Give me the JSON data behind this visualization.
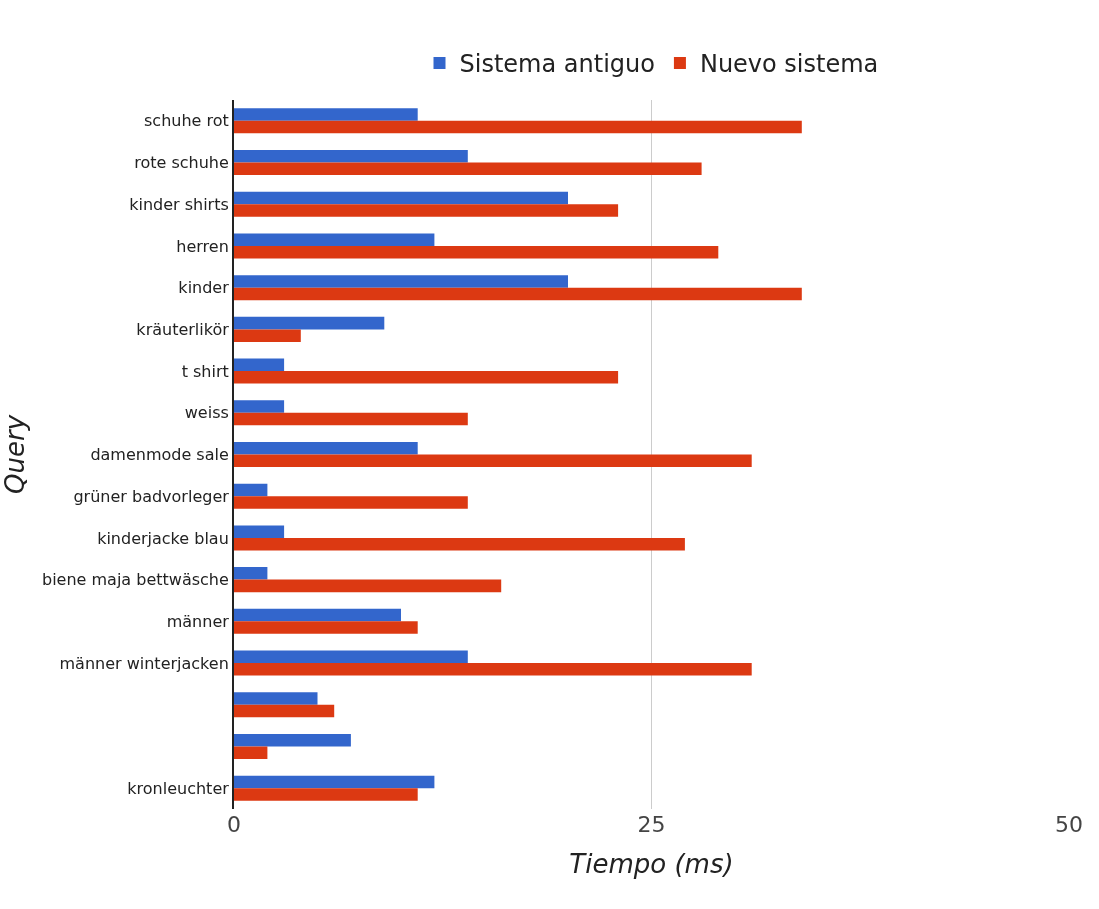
{
  "chart_data": {
    "type": "bar",
    "orientation": "horizontal",
    "xlabel": "Tiempo (ms)",
    "ylabel": "Query",
    "categories": [
      "schuhe rot",
      "rote schuhe",
      "kinder shirts",
      "herren",
      "kinder",
      "kräuterlikör",
      "t shirt",
      "weiss",
      "damenmode sale",
      "grüner badvorleger",
      "kinderjacke blau",
      "biene maja bettwäsche",
      "männer",
      "männer winterjacken",
      null,
      null,
      "kronleuchter"
    ],
    "series": [
      {
        "name": "Sistema antiguo",
        "color": "#3366cc",
        "values": [
          11,
          14,
          20,
          12,
          20,
          9,
          3,
          3,
          11,
          2,
          3,
          2,
          10,
          14,
          5,
          7,
          12
        ]
      },
      {
        "name": "Nuevo sistema",
        "color": "#dc3912",
        "values": [
          34,
          28,
          23,
          29,
          34,
          4,
          23,
          14,
          31,
          14,
          27,
          16,
          11,
          31,
          6,
          2,
          11
        ]
      }
    ],
    "xlim": [
      0,
      50
    ],
    "xticks": [
      0,
      25,
      50
    ],
    "grid": "x",
    "legend": "top"
  }
}
